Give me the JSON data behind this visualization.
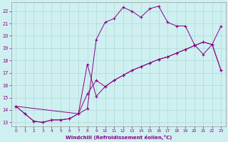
{
  "xlabel": "Windchill (Refroidissement éolien,°C)",
  "bg_color": "#cff0f0",
  "grid_color": "#b0d8d8",
  "line_color": "#880088",
  "xlim": [
    -0.5,
    23.5
  ],
  "ylim": [
    12.7,
    22.7
  ],
  "yticks": [
    13,
    14,
    15,
    16,
    17,
    18,
    19,
    20,
    21,
    22
  ],
  "xticks": [
    0,
    1,
    2,
    3,
    4,
    5,
    6,
    7,
    8,
    9,
    10,
    11,
    12,
    13,
    14,
    15,
    16,
    17,
    18,
    19,
    20,
    21,
    22,
    23
  ],
  "series1_x": [
    0,
    1,
    2,
    3,
    4,
    5,
    6,
    7,
    8,
    9,
    10,
    11,
    12,
    13,
    14,
    15,
    16,
    17,
    18,
    19,
    20,
    21,
    22,
    23
  ],
  "series1_y": [
    14.3,
    13.7,
    13.1,
    13.0,
    13.2,
    13.2,
    13.3,
    13.7,
    14.1,
    19.7,
    21.1,
    21.4,
    22.3,
    22.0,
    21.5,
    22.2,
    22.4,
    21.1,
    20.8,
    20.8,
    19.3,
    18.5,
    19.3,
    20.8
  ],
  "series2_x": [
    0,
    1,
    2,
    3,
    4,
    5,
    6,
    7,
    8,
    9,
    10,
    11,
    12,
    13,
    14,
    15,
    16,
    17,
    18,
    19,
    20,
    21,
    22,
    23
  ],
  "series2_y": [
    14.3,
    13.7,
    13.1,
    13.0,
    13.2,
    13.2,
    13.3,
    13.7,
    15.3,
    16.4,
    15.9,
    16.4,
    16.8,
    17.2,
    17.5,
    17.8,
    18.1,
    18.3,
    18.6,
    18.9,
    19.2,
    19.5,
    19.3,
    17.2
  ],
  "series3_x": [
    0,
    7,
    8,
    9,
    10,
    11,
    12,
    13,
    14,
    15,
    16,
    17,
    18,
    19,
    20,
    21,
    22,
    23
  ],
  "series3_y": [
    14.3,
    13.7,
    17.7,
    15.1,
    15.9,
    16.4,
    16.8,
    17.2,
    17.5,
    17.8,
    18.1,
    18.3,
    18.6,
    18.9,
    19.2,
    19.5,
    19.3,
    17.2
  ]
}
